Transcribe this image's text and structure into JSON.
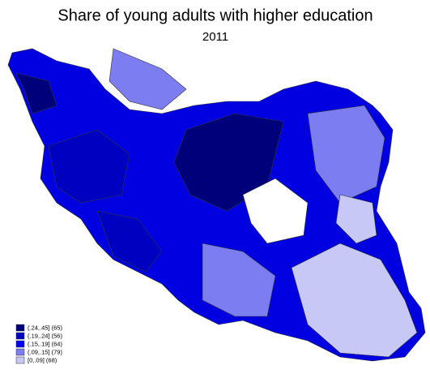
{
  "title": "Share of young adults with higher education",
  "subtitle": "2011",
  "legend": [
    {
      "label": "(.24,.45] (65)",
      "color": "#00007a"
    },
    {
      "label": "(.19,.24] (56)",
      "color": "#0000c0"
    },
    {
      "label": "(.15,.19] (64)",
      "color": "#0000ff"
    },
    {
      "label": "(.09,.15] (79)",
      "color": "#7d7df2"
    },
    {
      "label": "[0,.09] (68)",
      "color": "#c8c8f6"
    }
  ]
}
